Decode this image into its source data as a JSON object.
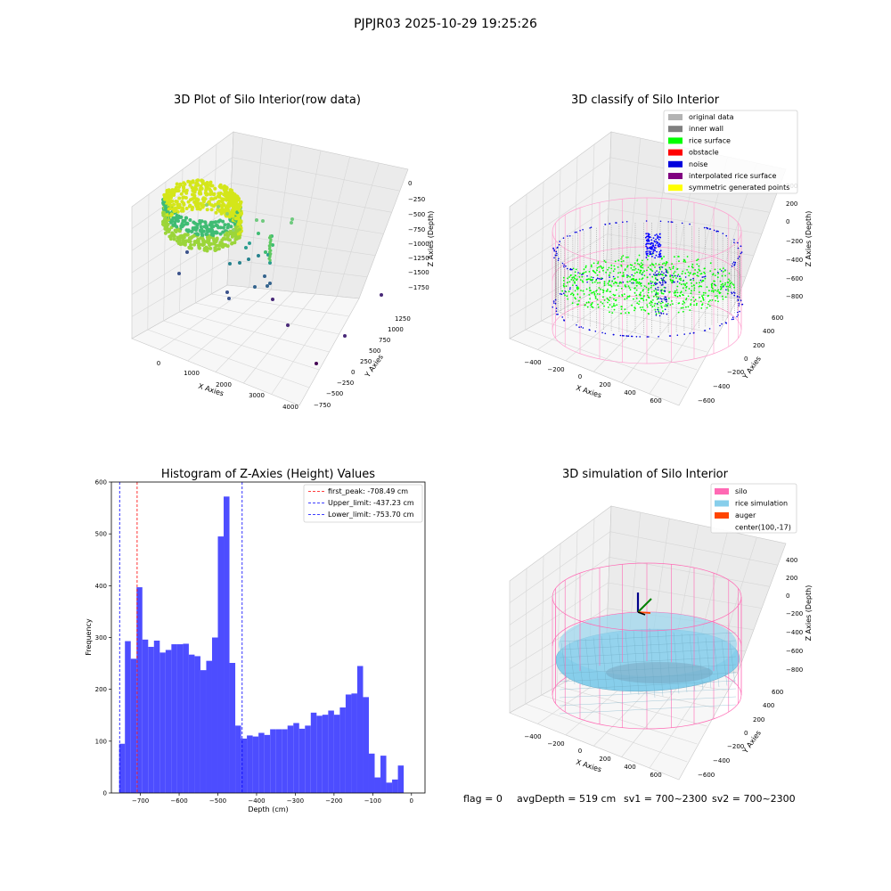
{
  "suptitle": "PJPJR03 2025-10-29 19:25:26",
  "footer": {
    "flag": "flag = 0",
    "avg_depth": "avgDepth = 519 cm",
    "sv1": "sv1 = 700~2300",
    "sv2": "sv2 = 700~2300"
  },
  "plot_raw": {
    "title": "3D Plot of Silo Interior(row data)",
    "xlabel": "X Axies",
    "ylabel": "Y Axies",
    "zlabel": "Z Axies (Depth)",
    "xticks": [
      "0",
      "1000",
      "2000",
      "3000",
      "4000"
    ],
    "yticks": [
      "−750",
      "−500",
      "−250",
      "0",
      "250",
      "500",
      "750",
      "1000",
      "1250"
    ],
    "zticks": [
      "0",
      "−250",
      "−500",
      "−750",
      "−1000",
      "−1250",
      "−1500",
      "−1750"
    ]
  },
  "plot_classify": {
    "title": "3D classify of Silo Interior",
    "xlabel": "X Axies",
    "ylabel": "Y Axies",
    "zlabel": "Z Axies (Depth)",
    "xticks": [
      "−400",
      "−200",
      "0",
      "200",
      "400",
      "600"
    ],
    "yticks": [
      "−600",
      "−400",
      "−200",
      "0",
      "200",
      "400",
      "600"
    ],
    "zticks": [
      "200",
      "0",
      "−200",
      "−400",
      "−600",
      "−800"
    ],
    "legend": [
      {
        "label": "original data",
        "color": "#b3b3b3"
      },
      {
        "label": "inner wall",
        "color": "#808080"
      },
      {
        "label": "rice surface",
        "color": "#00ff00"
      },
      {
        "label": "obstacle",
        "color": "#ff0000"
      },
      {
        "label": "noise",
        "color": "#0000dd"
      },
      {
        "label": "interpolated rice surface",
        "color": "#800080"
      },
      {
        "label": "symmetric generated points",
        "color": "#ffff00"
      }
    ]
  },
  "plot_simulation": {
    "title": "3D simulation of Silo Interior",
    "xlabel": "X Axies",
    "ylabel": "Y Axies",
    "zlabel": "Z Axies (Depth)",
    "xticks": [
      "−400",
      "−200",
      "0",
      "200",
      "400",
      "600"
    ],
    "yticks": [
      "−600",
      "−400",
      "−200",
      "0",
      "200",
      "400",
      "600"
    ],
    "zticks": [
      "400",
      "200",
      "0",
      "−200",
      "−400",
      "−600",
      "−800"
    ],
    "legend": [
      {
        "label": "silo",
        "color": "#ff69b4"
      },
      {
        "label": "rice simulation",
        "color": "#87ceeb"
      },
      {
        "label": "auger",
        "color": "#ff4500"
      },
      {
        "label": "center(100,-17)",
        "color": ""
      }
    ]
  },
  "chart_data": [
    {
      "type": "histogram",
      "title": "Histogram of Z-Axies (Height) Values",
      "xlabel": "Depth (cm)",
      "ylabel": "Frequency",
      "xlim": [
        -775,
        35
      ],
      "ylim": [
        0,
        600
      ],
      "xticks": [
        -700,
        -600,
        -500,
        -400,
        -300,
        -200,
        -100,
        0
      ],
      "yticks": [
        0,
        100,
        200,
        300,
        400,
        500,
        600
      ],
      "bar_color": "#4d4dff",
      "bin_start": -755,
      "bin_width": 15,
      "values": [
        95,
        293,
        259,
        397,
        296,
        282,
        294,
        271,
        276,
        287,
        287,
        288,
        267,
        264,
        237,
        255,
        300,
        495,
        572,
        251,
        130,
        105,
        111,
        109,
        116,
        112,
        123,
        123,
        123,
        130,
        135,
        124,
        130,
        155,
        149,
        151,
        159,
        151,
        165,
        190,
        192,
        245,
        185,
        76,
        30,
        72,
        20,
        26,
        53
      ],
      "vlines": [
        {
          "label": "first_peak: -708.49 cm",
          "x": -708.49,
          "color": "#ff0000"
        },
        {
          "label": "Upper_limit: -437.23 cm",
          "x": -437.23,
          "color": "#0000ff"
        },
        {
          "label": "Lower_limit: -753.70 cm",
          "x": -753.7,
          "color": "#0000ff"
        }
      ],
      "legend_position": "top-right"
    }
  ]
}
